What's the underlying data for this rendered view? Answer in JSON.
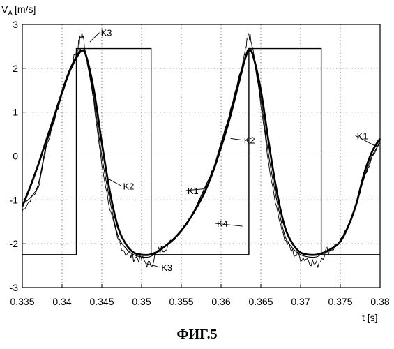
{
  "caption": "ФИГ.5",
  "chart_data": {
    "type": "line",
    "title": "",
    "xlabel": "t [s]",
    "ylabel": "V",
    "ylabel_sub": "A",
    "ylabel_unit": "[m/s]",
    "xlim": [
      0.335,
      0.38
    ],
    "ylim": [
      -3,
      3
    ],
    "x_ticks": [
      "0.335",
      "0.34",
      "0.345",
      "0.35",
      "0.355",
      "0.36",
      "0.365",
      "0.37",
      "0.375",
      "0.38"
    ],
    "y_ticks": [
      "3",
      "2",
      "1",
      "0",
      "-1",
      "-2",
      "-3"
    ],
    "grid": true,
    "grid_style": "dotted",
    "series": [
      {
        "name": "K1",
        "style": "thick",
        "x": [
          0.335,
          0.336,
          0.337,
          0.338,
          0.339,
          0.34,
          0.341,
          0.342,
          0.3425,
          0.343,
          0.344,
          0.345,
          0.346,
          0.347,
          0.348,
          0.349,
          0.35,
          0.351,
          0.352,
          0.353,
          0.354,
          0.355,
          0.356,
          0.357,
          0.358,
          0.359,
          0.36,
          0.361,
          0.362,
          0.363,
          0.3635,
          0.364,
          0.365,
          0.366,
          0.367,
          0.368,
          0.369,
          0.37,
          0.371,
          0.372,
          0.373,
          0.374,
          0.375,
          0.376,
          0.377,
          0.378,
          0.379,
          0.38
        ],
        "y": [
          -1.15,
          -0.7,
          -0.2,
          0.35,
          0.9,
          1.45,
          1.95,
          2.3,
          2.4,
          2.3,
          1.5,
          0.3,
          -0.8,
          -1.6,
          -2.0,
          -2.2,
          -2.25,
          -2.25,
          -2.18,
          -2.05,
          -1.9,
          -1.7,
          -1.45,
          -1.15,
          -0.8,
          -0.35,
          0.2,
          0.8,
          1.5,
          2.2,
          2.4,
          2.3,
          1.5,
          0.3,
          -0.8,
          -1.6,
          -2.0,
          -2.2,
          -2.25,
          -2.25,
          -2.2,
          -2.1,
          -1.95,
          -1.6,
          -1.1,
          -0.4,
          0.1,
          0.4
        ]
      },
      {
        "name": "K2",
        "style": "thin",
        "x": [
          0.335,
          0.336,
          0.337,
          0.338,
          0.339,
          0.34,
          0.341,
          0.342,
          0.3425,
          0.343,
          0.344,
          0.345,
          0.346,
          0.347,
          0.348,
          0.349,
          0.35,
          0.351,
          0.352,
          0.353,
          0.354,
          0.355,
          0.356,
          0.357,
          0.358,
          0.359,
          0.36,
          0.361,
          0.362,
          0.363,
          0.3635,
          0.364,
          0.365,
          0.366,
          0.367,
          0.368,
          0.369,
          0.37,
          0.371,
          0.372,
          0.373,
          0.374,
          0.375,
          0.376,
          0.377,
          0.378,
          0.379,
          0.38
        ],
        "y": [
          -1.1,
          -0.95,
          -0.65,
          0.25,
          0.8,
          1.5,
          2.0,
          2.35,
          2.45,
          2.3,
          1.3,
          0.0,
          -1.0,
          -1.8,
          -2.1,
          -2.25,
          -2.3,
          -2.3,
          -2.2,
          -2.05,
          -1.9,
          -1.7,
          -1.45,
          -1.1,
          -0.7,
          -0.3,
          0.3,
          0.9,
          1.6,
          2.25,
          2.45,
          2.3,
          1.3,
          0.0,
          -1.0,
          -1.8,
          -2.1,
          -2.25,
          -2.3,
          -2.3,
          -2.2,
          -2.1,
          -1.95,
          -1.6,
          -1.1,
          -0.5,
          0.0,
          0.3
        ]
      },
      {
        "name": "K3",
        "style": "noisy",
        "x": [
          0.335,
          0.336,
          0.337,
          0.338,
          0.339,
          0.34,
          0.341,
          0.342,
          0.3425,
          0.343,
          0.344,
          0.345,
          0.346,
          0.347,
          0.348,
          0.349,
          0.35,
          0.351,
          0.352,
          0.353,
          0.354,
          0.355,
          0.356,
          0.357,
          0.358,
          0.359,
          0.36,
          0.361,
          0.362,
          0.363,
          0.3635,
          0.364,
          0.365,
          0.366,
          0.367,
          0.368,
          0.369,
          0.37,
          0.371,
          0.372,
          0.373,
          0.374,
          0.375,
          0.376,
          0.377,
          0.378,
          0.379,
          0.38
        ],
        "y": [
          -1.25,
          -1.0,
          -0.75,
          0.2,
          0.8,
          1.4,
          2.0,
          2.5,
          2.8,
          2.4,
          1.2,
          -0.2,
          -1.2,
          -1.9,
          -2.2,
          -2.3,
          -2.35,
          -2.5,
          -2.2,
          -2.05,
          -1.9,
          -1.7,
          -1.45,
          -1.1,
          -0.75,
          -0.3,
          0.3,
          0.9,
          1.6,
          2.3,
          2.8,
          2.4,
          1.2,
          -0.2,
          -1.2,
          -1.9,
          -2.2,
          -2.3,
          -2.35,
          -2.5,
          -2.2,
          -2.1,
          -1.95,
          -1.6,
          -1.1,
          -0.5,
          -0.05,
          0.35
        ]
      },
      {
        "name": "K4",
        "style": "square",
        "x": [
          0.335,
          0.3418,
          0.3418,
          0.3512,
          0.3512,
          0.3635,
          0.3635,
          0.3726,
          0.3726,
          0.38
        ],
        "y": [
          -2.25,
          -2.25,
          2.45,
          2.45,
          -2.25,
          -2.25,
          2.45,
          2.45,
          -2.25,
          -2.25
        ]
      }
    ],
    "annotations": [
      {
        "label": "K3",
        "x": 0.3435,
        "y": 2.6,
        "text_x": 0.3447,
        "text_y": 2.75
      },
      {
        "label": "K2",
        "x": 0.3456,
        "y": -0.5,
        "text_x": 0.3475,
        "text_y": -0.75
      },
      {
        "label": "K3",
        "x": 0.3505,
        "y": -2.45,
        "text_x": 0.3523,
        "text_y": -2.6
      },
      {
        "label": "K2",
        "x": 0.3612,
        "y": 0.4,
        "text_x": 0.3627,
        "text_y": 0.3
      },
      {
        "label": "K1",
        "x": 0.3578,
        "y": -0.75,
        "text_x": 0.3556,
        "text_y": -0.85
      },
      {
        "label": "K4",
        "x": 0.3627,
        "y": -1.6,
        "text_x": 0.3593,
        "text_y": -1.6
      },
      {
        "label": "K1",
        "x": 0.3797,
        "y": 0.2,
        "text_x": 0.3769,
        "text_y": 0.4
      }
    ]
  }
}
